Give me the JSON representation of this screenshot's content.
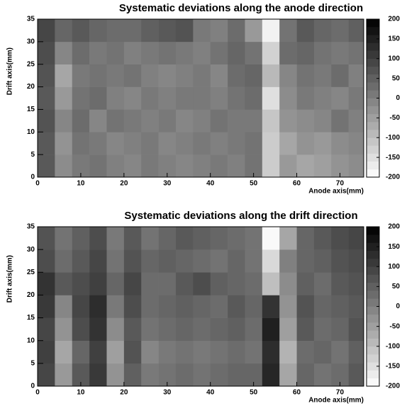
{
  "chart_data": [
    {
      "type": "heatmap",
      "title": "Systematic deviations along the anode direction",
      "xlabel": "Anode axis(mm)",
      "ylabel": "Drift axis(mm)",
      "xlim": [
        0,
        75.5
      ],
      "ylim": [
        0,
        35
      ],
      "xticks": [
        0,
        10,
        20,
        30,
        40,
        50,
        60,
        70
      ],
      "yticks": [
        0,
        5,
        10,
        15,
        20,
        25,
        30,
        35
      ],
      "zlim": [
        -200,
        200
      ],
      "zticks": [
        -200,
        -150,
        -100,
        -50,
        0,
        50,
        100,
        150,
        200
      ],
      "colormap": "gray-inverted",
      "xbins": [
        0,
        4,
        8,
        12,
        16,
        20,
        24,
        28,
        32,
        36,
        40,
        44,
        48,
        52,
        56,
        60,
        64,
        68,
        72,
        75.5
      ],
      "ybins": [
        0,
        5,
        10,
        15,
        20,
        25,
        30,
        35
      ],
      "z": [
        [
          60,
          -20,
          10,
          20,
          0,
          -10,
          10,
          0,
          -10,
          0,
          10,
          0,
          20,
          -120,
          -40,
          -60,
          -50,
          -30,
          -20
        ],
        [
          60,
          -30,
          20,
          10,
          -10,
          0,
          10,
          -10,
          0,
          10,
          0,
          10,
          20,
          -120,
          -60,
          -30,
          -40,
          -20,
          -10
        ],
        [
          70,
          -10,
          30,
          -10,
          20,
          10,
          0,
          10,
          -10,
          0,
          20,
          10,
          10,
          -110,
          -30,
          -20,
          -10,
          20,
          0
        ],
        [
          60,
          -40,
          20,
          30,
          0,
          -10,
          10,
          0,
          10,
          10,
          0,
          20,
          30,
          -150,
          -20,
          10,
          0,
          -10,
          10
        ],
        [
          70,
          -60,
          10,
          20,
          10,
          20,
          0,
          -10,
          0,
          10,
          -10,
          30,
          40,
          -90,
          -10,
          20,
          10,
          30,
          0
        ],
        [
          80,
          -10,
          30,
          10,
          20,
          0,
          10,
          20,
          10,
          0,
          20,
          40,
          20,
          -130,
          30,
          40,
          20,
          10,
          20
        ],
        [
          90,
          40,
          60,
          40,
          30,
          30,
          50,
          60,
          70,
          10,
          0,
          30,
          -40,
          -180,
          20,
          60,
          40,
          30,
          50
        ]
      ]
    },
    {
      "type": "heatmap",
      "title": "Systematic deviations along the drift direction",
      "xlabel": "Anode axis(mm)",
      "ylabel": "Drift axis(mm)",
      "xlim": [
        0,
        75.5
      ],
      "ylim": [
        0,
        35
      ],
      "xticks": [
        0,
        10,
        20,
        30,
        40,
        50,
        60,
        70
      ],
      "yticks": [
        0,
        5,
        10,
        15,
        20,
        25,
        30,
        35
      ],
      "zlim": [
        -200,
        200
      ],
      "zticks": [
        -200,
        -150,
        -100,
        -50,
        0,
        50,
        100,
        150,
        200
      ],
      "colormap": "gray-inverted",
      "xbins": [
        0,
        4,
        8,
        12,
        16,
        20,
        24,
        28,
        32,
        36,
        40,
        44,
        48,
        52,
        56,
        60,
        64,
        68,
        72,
        75.5
      ],
      "ybins": [
        0,
        5,
        10,
        15,
        20,
        25,
        30,
        35
      ],
      "z": [
        [
          90,
          -40,
          60,
          110,
          -30,
          50,
          10,
          20,
          30,
          20,
          30,
          40,
          40,
          140,
          -60,
          40,
          20,
          30,
          60
        ],
        [
          100,
          -60,
          40,
          100,
          -50,
          70,
          -10,
          10,
          20,
          10,
          20,
          30,
          20,
          130,
          -80,
          30,
          40,
          20,
          50
        ],
        [
          90,
          -30,
          80,
          120,
          -20,
          60,
          20,
          30,
          40,
          30,
          40,
          50,
          30,
          150,
          -50,
          60,
          30,
          40,
          70
        ],
        [
          110,
          -10,
          90,
          130,
          10,
          80,
          30,
          40,
          50,
          40,
          30,
          60,
          40,
          120,
          -30,
          70,
          40,
          50,
          60
        ],
        [
          120,
          60,
          80,
          100,
          40,
          90,
          30,
          30,
          60,
          80,
          50,
          40,
          30,
          -100,
          -20,
          50,
          30,
          60,
          70
        ],
        [
          80,
          30,
          60,
          90,
          20,
          70,
          40,
          50,
          40,
          30,
          20,
          40,
          20,
          -140,
          0,
          40,
          50,
          70,
          80
        ],
        [
          70,
          20,
          50,
          80,
          10,
          60,
          20,
          40,
          60,
          50,
          40,
          30,
          20,
          -190,
          -60,
          40,
          60,
          80,
          90
        ]
      ]
    }
  ]
}
